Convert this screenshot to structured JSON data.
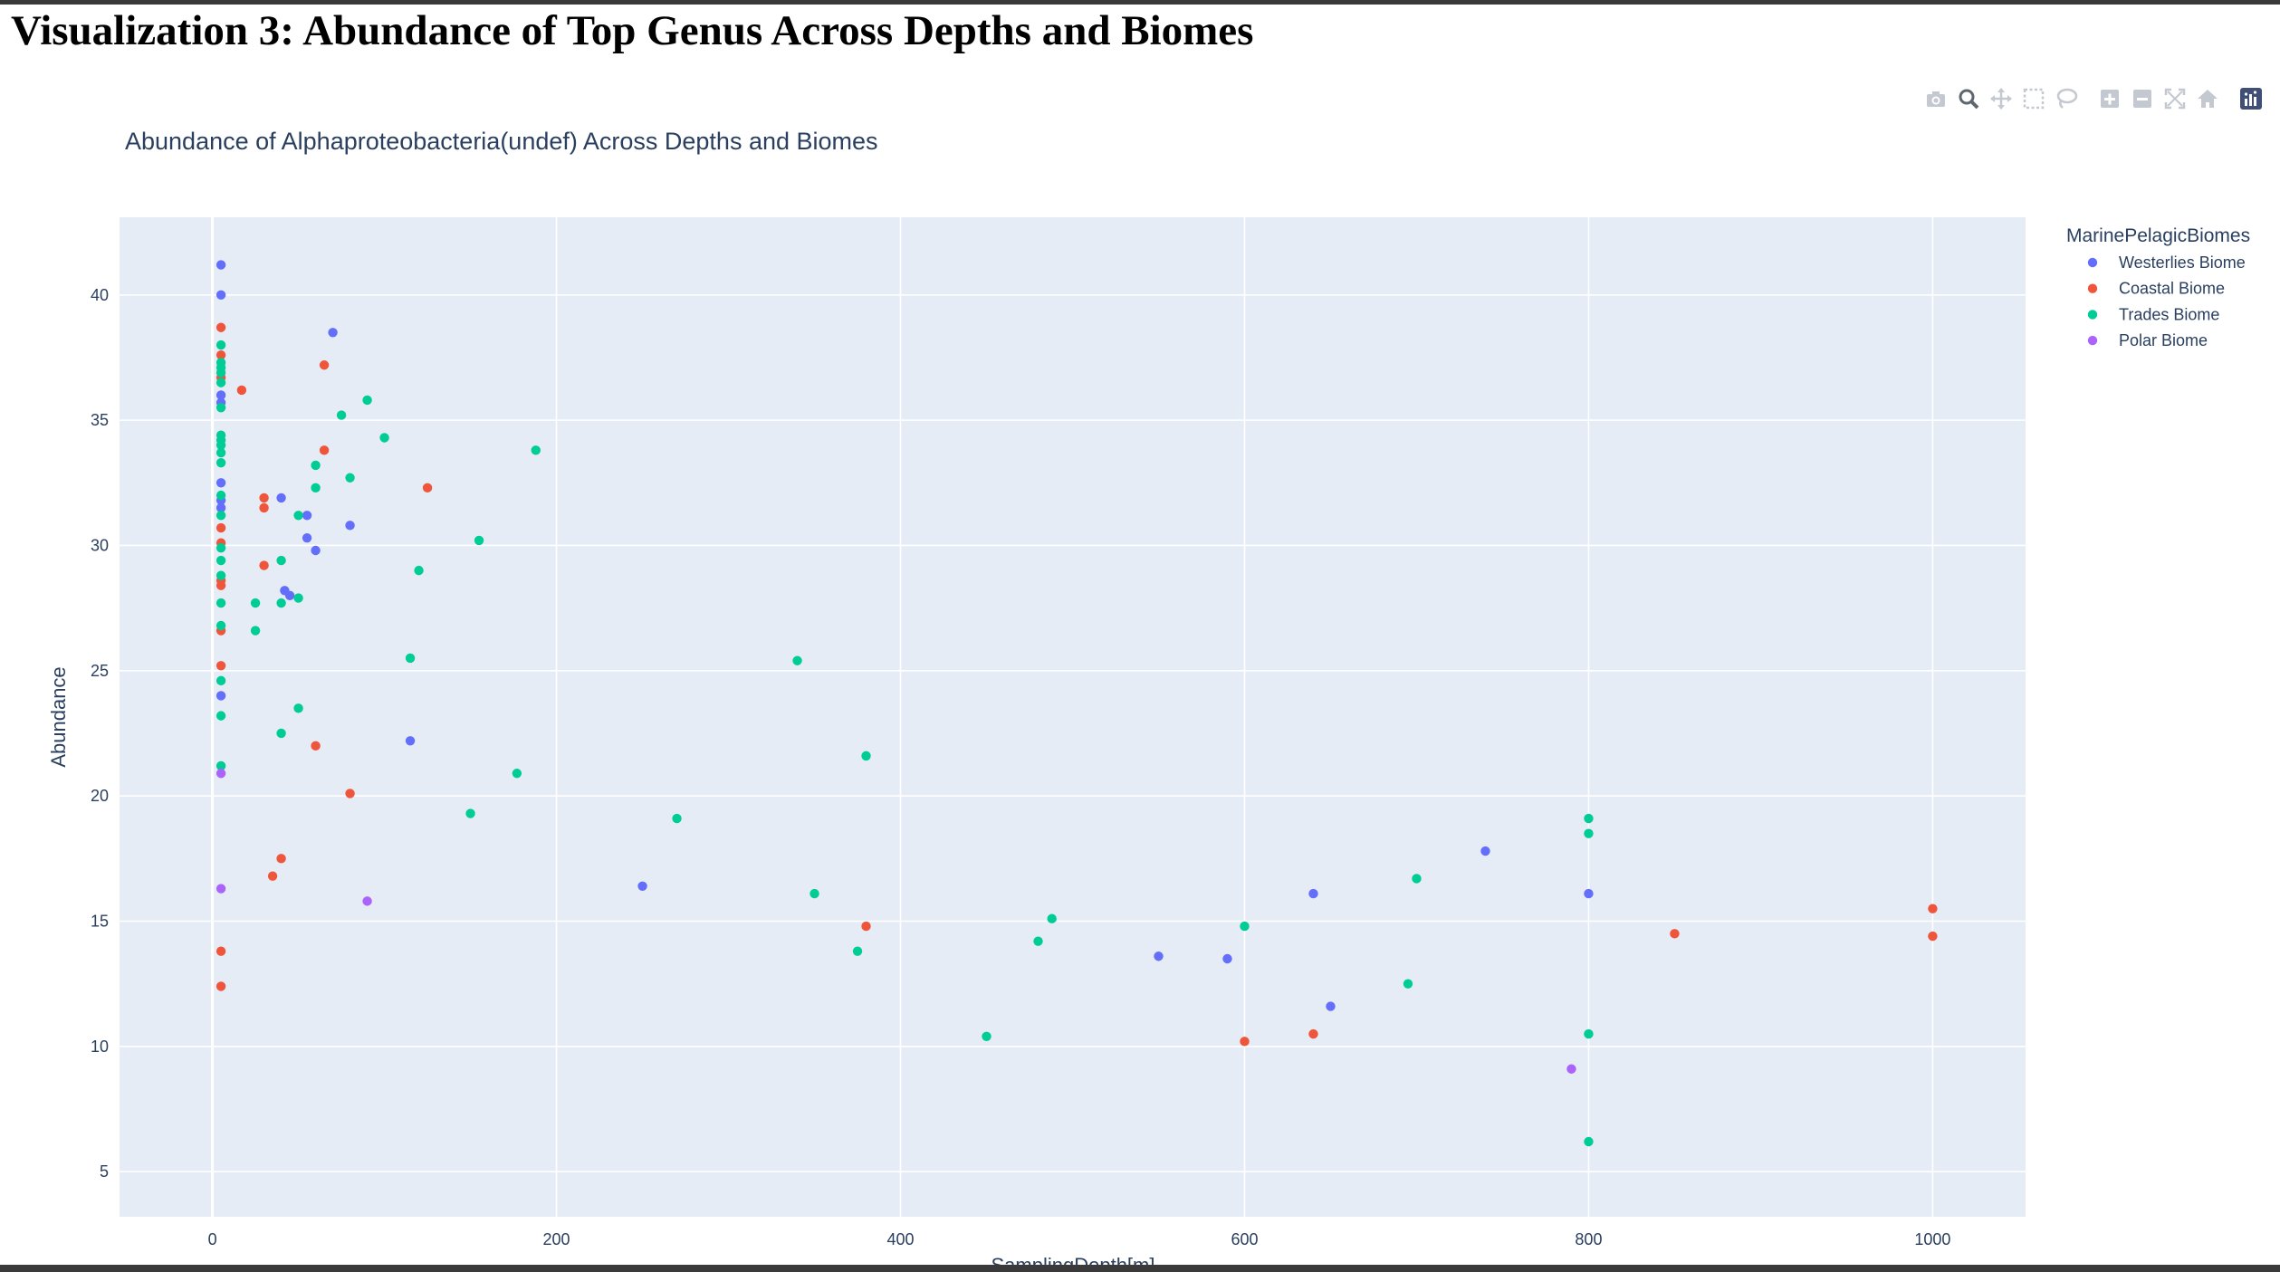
{
  "page": {
    "heading": "Visualization 3: Abundance of Top Genus Across Depths and Biomes"
  },
  "modebar": {
    "icons": [
      "camera-icon",
      "zoom-icon",
      "pan-icon",
      "box-select-icon",
      "lasso-select-icon",
      "zoom-in-icon",
      "zoom-out-icon",
      "autoscale-icon",
      "reset-axes-icon",
      "plotly-logo-icon"
    ]
  },
  "chart_data": {
    "type": "scatter",
    "title": "Abundance of Alphaproteobacteria(undef) Across Depths and Biomes",
    "xlabel": "SamplingDepth[m]",
    "ylabel": "Abundance",
    "xlim": [
      -54,
      1054
    ],
    "ylim": [
      3.2,
      43.1
    ],
    "xticks": [
      0,
      200,
      400,
      600,
      800,
      1000
    ],
    "yticks": [
      5,
      10,
      15,
      20,
      25,
      30,
      35,
      40
    ],
    "grid": true,
    "background": "#e5ecf6",
    "legend": {
      "title": "MarinePelagicBiomes",
      "placement": "right"
    },
    "series": [
      {
        "name": "Westerlies Biome",
        "color": "#636efa",
        "points": [
          [
            5,
            41.2
          ],
          [
            5,
            40.0
          ],
          [
            5,
            36.0
          ],
          [
            5,
            35.7
          ],
          [
            5,
            32.5
          ],
          [
            5,
            31.8
          ],
          [
            5,
            31.5
          ],
          [
            5,
            24.0
          ],
          [
            70,
            38.5
          ],
          [
            40,
            31.9
          ],
          [
            55,
            31.2
          ],
          [
            55,
            30.3
          ],
          [
            60,
            29.8
          ],
          [
            80,
            30.8
          ],
          [
            42,
            28.2
          ],
          [
            45,
            28.0
          ],
          [
            115,
            22.2
          ],
          [
            250,
            16.4
          ],
          [
            550,
            13.6
          ],
          [
            590,
            13.5
          ],
          [
            640,
            16.1
          ],
          [
            650,
            11.6
          ],
          [
            740,
            17.8
          ],
          [
            800,
            16.1
          ]
        ]
      },
      {
        "name": "Coastal Biome",
        "color": "#ef553b",
        "points": [
          [
            5,
            38.7
          ],
          [
            5,
            37.6
          ],
          [
            5,
            36.7
          ],
          [
            5,
            30.7
          ],
          [
            5,
            30.1
          ],
          [
            5,
            28.6
          ],
          [
            5,
            28.4
          ],
          [
            5,
            26.6
          ],
          [
            5,
            25.2
          ],
          [
            5,
            13.8
          ],
          [
            5,
            12.4
          ],
          [
            17,
            36.2
          ],
          [
            30,
            31.9
          ],
          [
            30,
            31.5
          ],
          [
            30,
            29.2
          ],
          [
            65,
            37.2
          ],
          [
            65,
            33.8
          ],
          [
            125,
            32.3
          ],
          [
            60,
            22.0
          ],
          [
            80,
            20.1
          ],
          [
            40,
            17.5
          ],
          [
            35,
            16.8
          ],
          [
            380,
            14.8
          ],
          [
            600,
            10.2
          ],
          [
            640,
            10.5
          ],
          [
            850,
            14.5
          ],
          [
            1000,
            15.5
          ],
          [
            1000,
            14.4
          ]
        ]
      },
      {
        "name": "Trades Biome",
        "color": "#00cc96",
        "points": [
          [
            5,
            38.0
          ],
          [
            5,
            37.3
          ],
          [
            5,
            37.1
          ],
          [
            5,
            36.9
          ],
          [
            5,
            36.5
          ],
          [
            5,
            35.5
          ],
          [
            5,
            34.4
          ],
          [
            5,
            34.2
          ],
          [
            5,
            34.0
          ],
          [
            5,
            33.7
          ],
          [
            5,
            33.3
          ],
          [
            5,
            32.0
          ],
          [
            5,
            31.2
          ],
          [
            5,
            29.9
          ],
          [
            5,
            29.4
          ],
          [
            5,
            28.8
          ],
          [
            5,
            27.7
          ],
          [
            5,
            26.8
          ],
          [
            5,
            24.6
          ],
          [
            5,
            23.2
          ],
          [
            5,
            21.2
          ],
          [
            25,
            27.7
          ],
          [
            25,
            26.6
          ],
          [
            40,
            29.4
          ],
          [
            40,
            27.7
          ],
          [
            40,
            22.5
          ],
          [
            50,
            31.2
          ],
          [
            50,
            27.9
          ],
          [
            50,
            23.5
          ],
          [
            60,
            33.2
          ],
          [
            60,
            32.3
          ],
          [
            75,
            35.2
          ],
          [
            80,
            32.7
          ],
          [
            90,
            35.8
          ],
          [
            100,
            34.3
          ],
          [
            115,
            25.5
          ],
          [
            120,
            29.0
          ],
          [
            150,
            19.3
          ],
          [
            155,
            30.2
          ],
          [
            177,
            20.9
          ],
          [
            188,
            33.8
          ],
          [
            270,
            19.1
          ],
          [
            340,
            25.4
          ],
          [
            350,
            16.1
          ],
          [
            375,
            13.8
          ],
          [
            380,
            21.6
          ],
          [
            450,
            10.4
          ],
          [
            480,
            14.2
          ],
          [
            488,
            15.1
          ],
          [
            600,
            14.8
          ],
          [
            695,
            12.5
          ],
          [
            700,
            16.7
          ],
          [
            800,
            19.1
          ],
          [
            800,
            18.5
          ],
          [
            800,
            10.5
          ],
          [
            800,
            6.2
          ]
        ]
      },
      {
        "name": "Polar Biome",
        "color": "#ab63fa",
        "points": [
          [
            5,
            20.9
          ],
          [
            5,
            16.3
          ],
          [
            90,
            15.8
          ],
          [
            790,
            9.1
          ]
        ]
      }
    ]
  }
}
